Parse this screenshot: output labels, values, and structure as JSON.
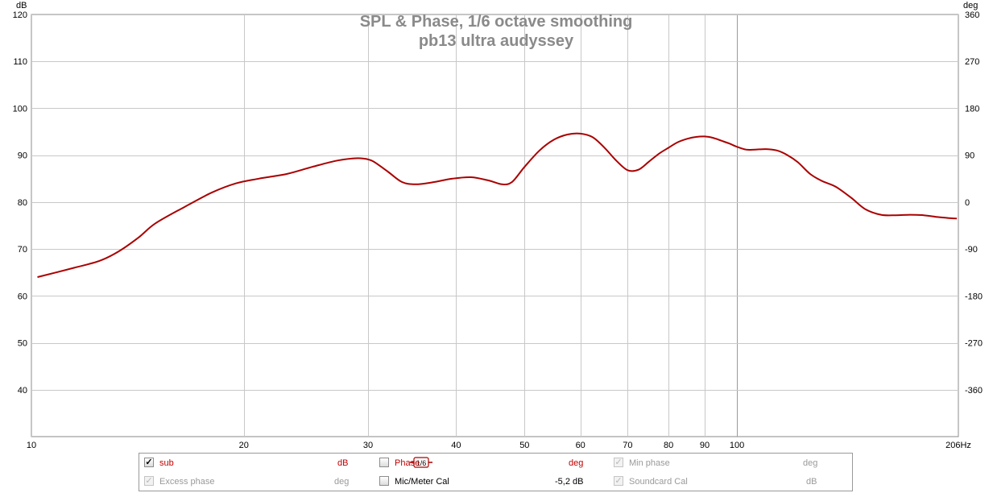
{
  "chart_data": {
    "type": "line",
    "title": "SPL & Phase, 1/6 octave smoothing",
    "subtitle": "pb13 ultra audyssey",
    "ylabel": "dB",
    "y2label": "deg",
    "xscale": "log",
    "xlim": [
      10,
      206
    ],
    "ylim": [
      30,
      120
    ],
    "y2lim": [
      -450,
      360
    ],
    "x_ticks": [
      "10",
      "20",
      "30",
      "40",
      "50",
      "60",
      "70",
      "80",
      "90",
      "100",
      "206Hz"
    ],
    "x_tick_values": [
      10,
      20,
      30,
      40,
      50,
      60,
      70,
      80,
      90,
      100,
      206
    ],
    "y_ticks": [
      120,
      110,
      100,
      90,
      80,
      70,
      60,
      50,
      40
    ],
    "y2_ticks": [
      360,
      270,
      180,
      90,
      0,
      -90,
      -180,
      -270,
      -360
    ],
    "grid": true,
    "series": [
      {
        "name": "sub",
        "color": "#aa0000",
        "x": [
          10.2,
          11.5,
          12.5,
          13.3,
          14.2,
          15,
          16.5,
          18,
          19.5,
          21,
          23,
          25,
          27,
          28.5,
          29.5,
          30.5,
          32,
          33.5,
          35,
          37,
          39.5,
          42,
          44.5,
          46.5,
          48,
          50,
          52.5,
          55,
          57.5,
          60,
          62.5,
          65,
          67.5,
          70,
          72.5,
          75,
          77.5,
          80,
          82.5,
          85,
          87.5,
          90,
          92.5,
          95,
          97.5,
          100,
          103,
          106,
          110,
          114,
          118,
          122,
          127,
          132,
          138,
          145,
          152,
          160,
          168,
          176,
          184,
          193,
          200,
          205
        ],
        "values": [
          64,
          66,
          67.5,
          69.5,
          72.5,
          75.5,
          79,
          82,
          84,
          85,
          86,
          87.5,
          88.8,
          89.3,
          89.3,
          88.7,
          86.5,
          84.3,
          83.8,
          84.2,
          85,
          85.3,
          84.6,
          83.8,
          84.3,
          87.5,
          91,
          93.3,
          94.4,
          94.6,
          93.8,
          91.5,
          88.8,
          86.8,
          86.9,
          88.6,
          90.3,
          91.6,
          92.8,
          93.5,
          93.9,
          94,
          93.7,
          93.1,
          92.5,
          91.8,
          91.2,
          91.2,
          91.3,
          91,
          90,
          88.5,
          86,
          84.5,
          83.3,
          81,
          78.5,
          77.3,
          77.2,
          77.3,
          77.2,
          76.8,
          76.6,
          76.5
        ]
      }
    ]
  },
  "legend": {
    "sub": {
      "label": "sub",
      "unit": "dB",
      "checked": true
    },
    "smoothing": "1/6",
    "phase": {
      "label": "Phase",
      "unit": "deg",
      "checked": false
    },
    "min_phase": {
      "label": "Min phase",
      "unit": "deg",
      "checked": true
    },
    "excess_phase": {
      "label": "Excess phase",
      "unit": "deg",
      "checked": true
    },
    "mic_cal": {
      "label": "Mic/Meter Cal",
      "value": "-5,2 dB",
      "checked": false
    },
    "soundcard_cal": {
      "label": "Soundcard Cal",
      "unit": "dB",
      "checked": true
    },
    "check_glyph": "✓"
  },
  "colors": {
    "series": "#aa0000",
    "grid": "#c8c8c8",
    "plot_border": "#8a8a8a",
    "title": "#8a8a8a",
    "legend_red": "#c00000"
  }
}
